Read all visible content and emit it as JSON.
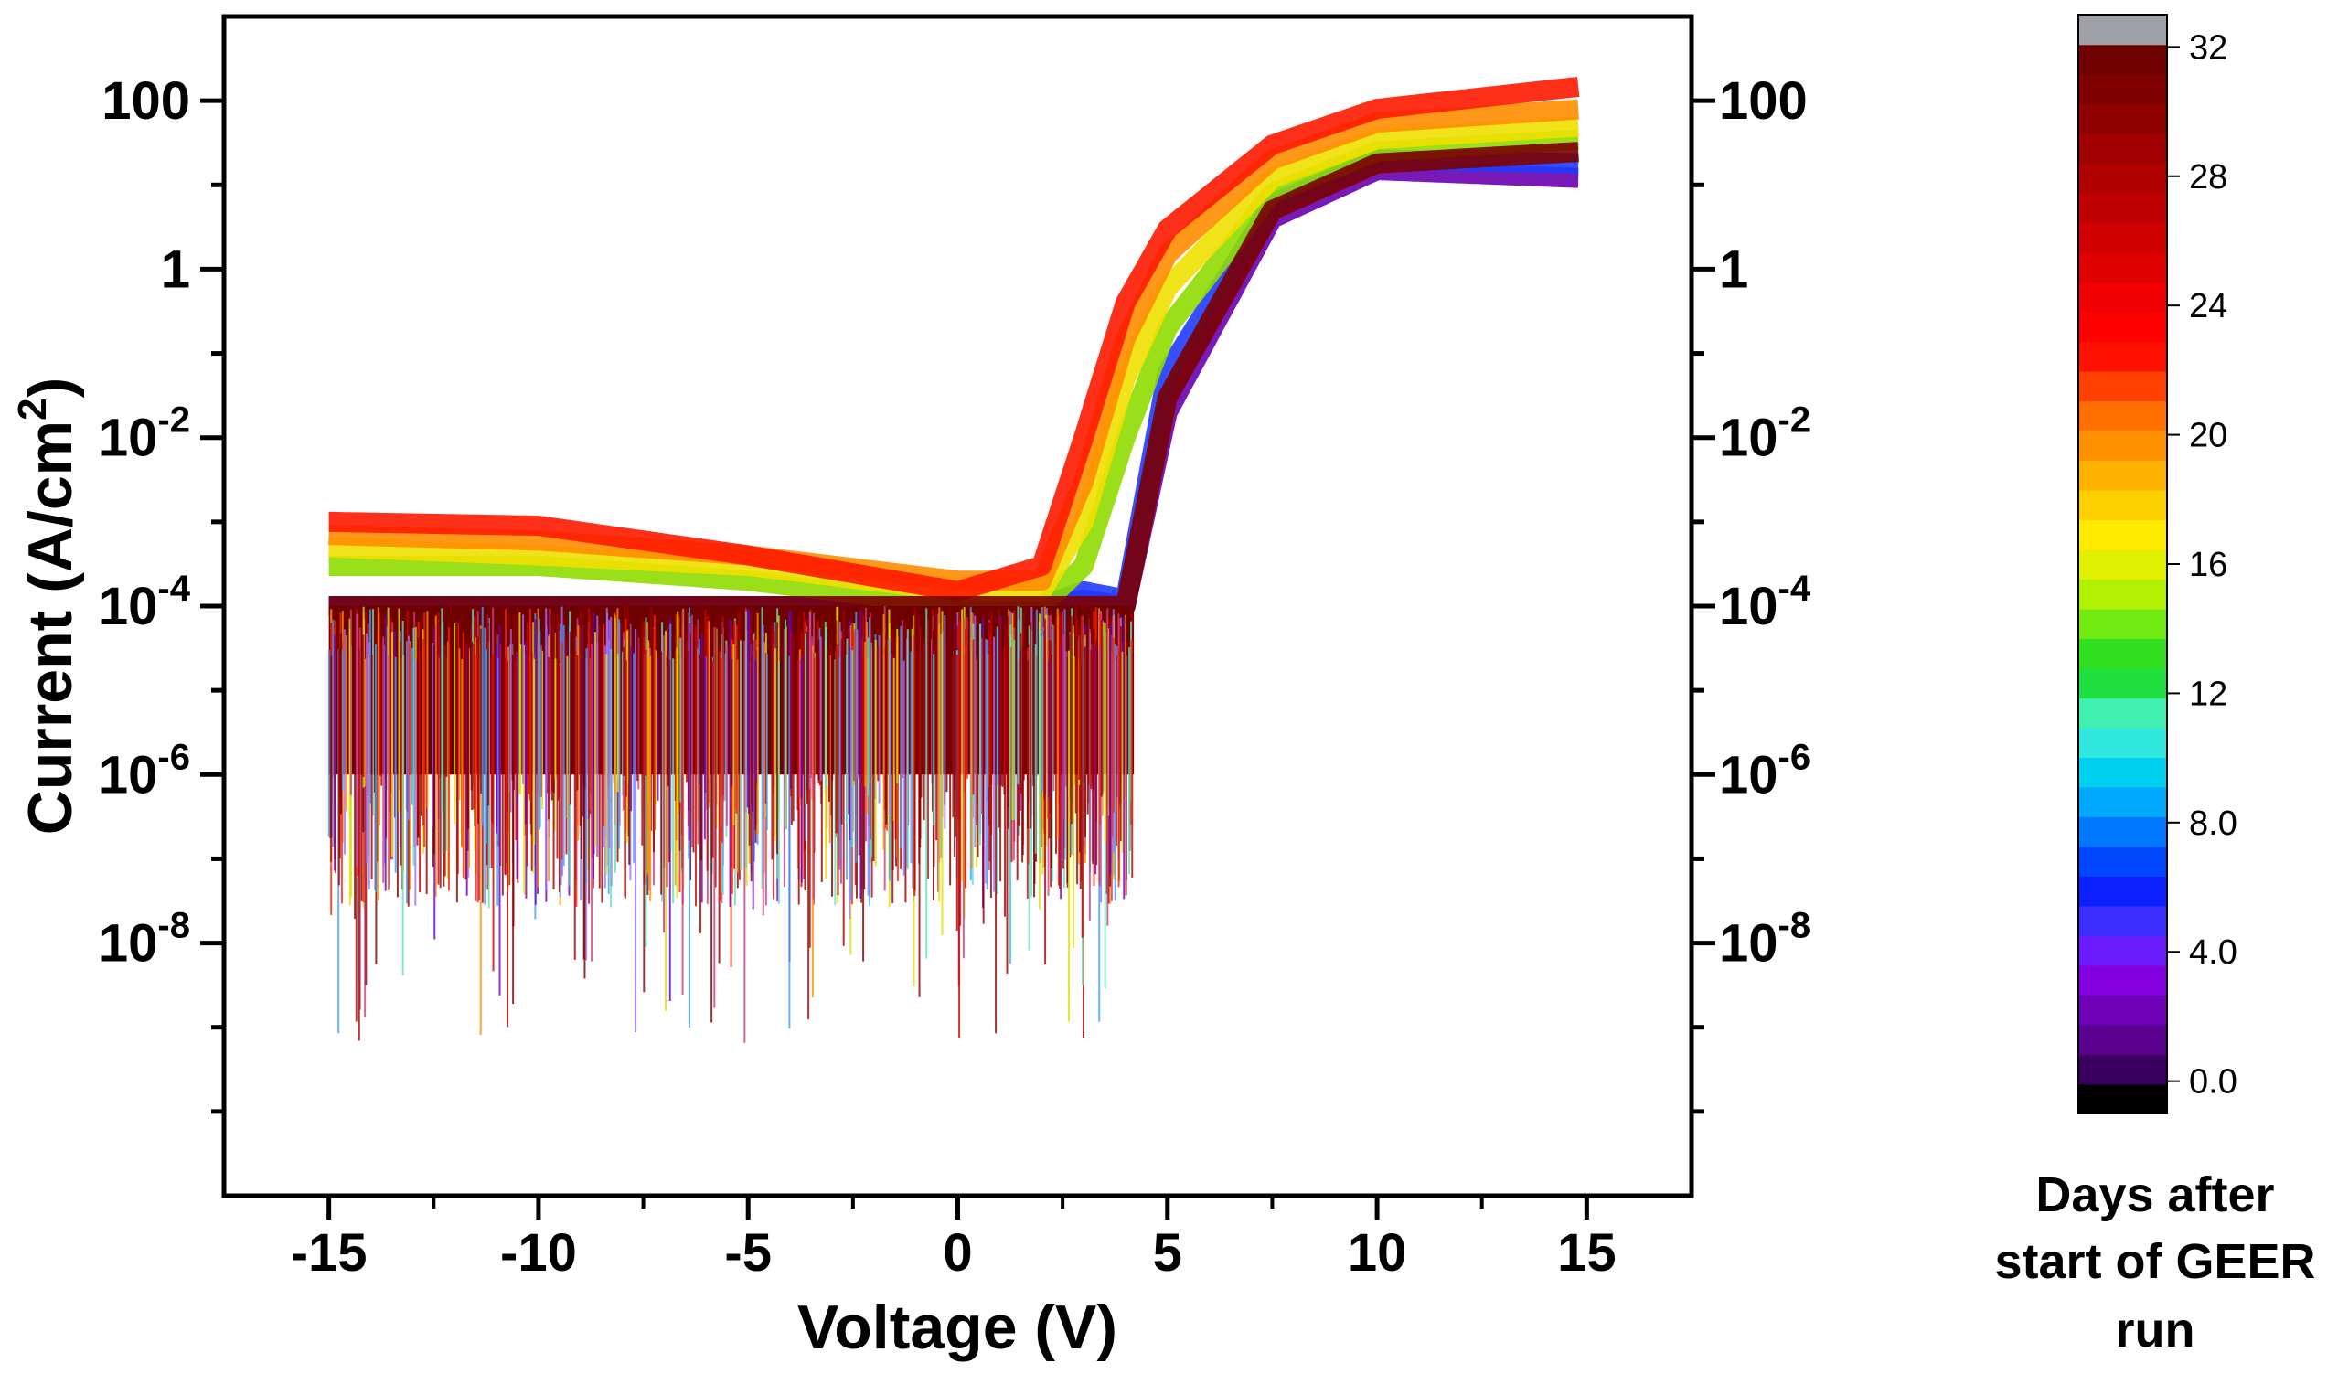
{
  "chart_data": {
    "type": "line",
    "title": "",
    "xlabel": "Voltage (V)",
    "ylabel_main": "Current (A/cm",
    "ylabel_sup": "2",
    "ylabel_close": ")",
    "yscale": "log",
    "xlim": [
      -17.5,
      17.5
    ],
    "ylim": [
      1e-11,
      1000
    ],
    "x_ticks": [
      {
        "value": -15,
        "label": "-15"
      },
      {
        "value": -10,
        "label": "-10"
      },
      {
        "value": -5,
        "label": "-5"
      },
      {
        "value": 0,
        "label": "0"
      },
      {
        "value": 5,
        "label": "5"
      },
      {
        "value": 10,
        "label": "10"
      },
      {
        "value": 15,
        "label": "15"
      }
    ],
    "y_ticks": [
      {
        "value": 100,
        "base": "100",
        "exp": ""
      },
      {
        "value": 1,
        "base": "1",
        "exp": ""
      },
      {
        "value": 0.01,
        "base": "10",
        "exp": "-2"
      },
      {
        "value": 0.0001,
        "base": "10",
        "exp": "-4"
      },
      {
        "value": 1e-06,
        "base": "10",
        "exp": "-6"
      },
      {
        "value": 1e-08,
        "base": "10",
        "exp": "-8"
      }
    ],
    "y_ticks_right": [
      {
        "value": 100,
        "base": "100",
        "exp": ""
      },
      {
        "value": 1,
        "base": "1",
        "exp": ""
      },
      {
        "value": 0.01,
        "base": "10",
        "exp": "-2"
      },
      {
        "value": 0.0001,
        "base": "10",
        "exp": "-4"
      },
      {
        "value": 1e-06,
        "base": "10",
        "exp": "-6"
      },
      {
        "value": 1e-08,
        "base": "10",
        "exp": "-8"
      }
    ],
    "grid": false,
    "series": [
      {
        "x": [
          -15,
          -10,
          -5,
          0,
          2,
          3,
          4,
          5,
          7.5,
          10,
          15
        ],
        "y": [
          0.0001,
          0.0001,
          0.0001,
          0.0001,
          0.0001,
          0.00012,
          0.0001,
          0.02,
          4,
          15,
          12
        ],
        "color": "#6a00b0"
      },
      {
        "x": [
          -15,
          -10,
          -5,
          0,
          2,
          3,
          4,
          5,
          7.5,
          10,
          15
        ],
        "y": [
          0.0001,
          0.0001,
          0.0001,
          0.0001,
          0.0001,
          0.00015,
          0.00012,
          0.06,
          6,
          20,
          18
        ],
        "color": "#1f3cff"
      },
      {
        "x": [
          -15,
          -10,
          -5,
          0,
          2,
          3,
          4,
          5,
          7.5,
          10,
          15
        ],
        "y": [
          0.0003,
          0.0003,
          0.0002,
          0.0001,
          0.0001,
          0.0003,
          0.01,
          0.2,
          8,
          25,
          35
        ],
        "color": "#8fdc00"
      },
      {
        "x": [
          -15,
          -10,
          -5,
          0,
          2,
          3,
          4,
          5,
          7.5,
          10,
          15
        ],
        "y": [
          0.0005,
          0.0004,
          0.0003,
          0.00015,
          0.00015,
          0.001,
          0.05,
          0.6,
          12,
          35,
          50
        ],
        "color": "#f0e000"
      },
      {
        "x": [
          -15,
          -10,
          -5,
          0,
          2,
          3,
          4,
          5,
          7.5,
          10,
          15
        ],
        "y": [
          0.0007,
          0.0006,
          0.0004,
          0.0002,
          0.0002,
          0.003,
          0.15,
          1.5,
          20,
          55,
          80
        ],
        "color": "#ff8c00"
      },
      {
        "x": [
          -15,
          -10,
          -5,
          0,
          2,
          3,
          4,
          5,
          7.5,
          10,
          15
        ],
        "y": [
          0.001,
          0.0009,
          0.0004,
          0.00015,
          0.0003,
          0.01,
          0.4,
          3,
          30,
          80,
          150
        ],
        "color": "#ff1a00"
      },
      {
        "x": [
          -15,
          -10,
          -5,
          0,
          2,
          3,
          4,
          5,
          7.5,
          10,
          15
        ],
        "y": [
          0.0001,
          0.0001,
          0.0001,
          0.0001,
          0.0001,
          0.0001,
          0.0001,
          0.03,
          5,
          18,
          25
        ],
        "color": "#7a0000"
      }
    ],
    "colorbar": {
      "title_lines": [
        "Days after",
        "start of GEER",
        "run"
      ],
      "min": -1,
      "max": 33,
      "ticks": [
        {
          "value": 0,
          "label": "0.0"
        },
        {
          "value": 4,
          "label": "4.0"
        },
        {
          "value": 8,
          "label": "8.0"
        },
        {
          "value": 12,
          "label": "12"
        },
        {
          "value": 16,
          "label": "16"
        },
        {
          "value": 20,
          "label": "20"
        },
        {
          "value": 24,
          "label": "24"
        },
        {
          "value": 28,
          "label": "28"
        },
        {
          "value": 32,
          "label": "32"
        }
      ],
      "bands": [
        "#000000",
        "#3a0060",
        "#5b008f",
        "#7000b8",
        "#8500e0",
        "#6a1cff",
        "#3a2dff",
        "#0a20ff",
        "#0048ff",
        "#0078ff",
        "#00a8ff",
        "#00d0f0",
        "#30e8e0",
        "#40f0b0",
        "#20e040",
        "#30e020",
        "#70ea10",
        "#b0f000",
        "#e0f000",
        "#ffea00",
        "#ffd000",
        "#ffb000",
        "#ff9000",
        "#ff7000",
        "#ff4000",
        "#ff1000",
        "#ff0000",
        "#f00000",
        "#e00000",
        "#d00000",
        "#c00000",
        "#b00000",
        "#a00000",
        "#900000",
        "#800000",
        "#700000",
        "#a0a0a8"
      ]
    }
  }
}
